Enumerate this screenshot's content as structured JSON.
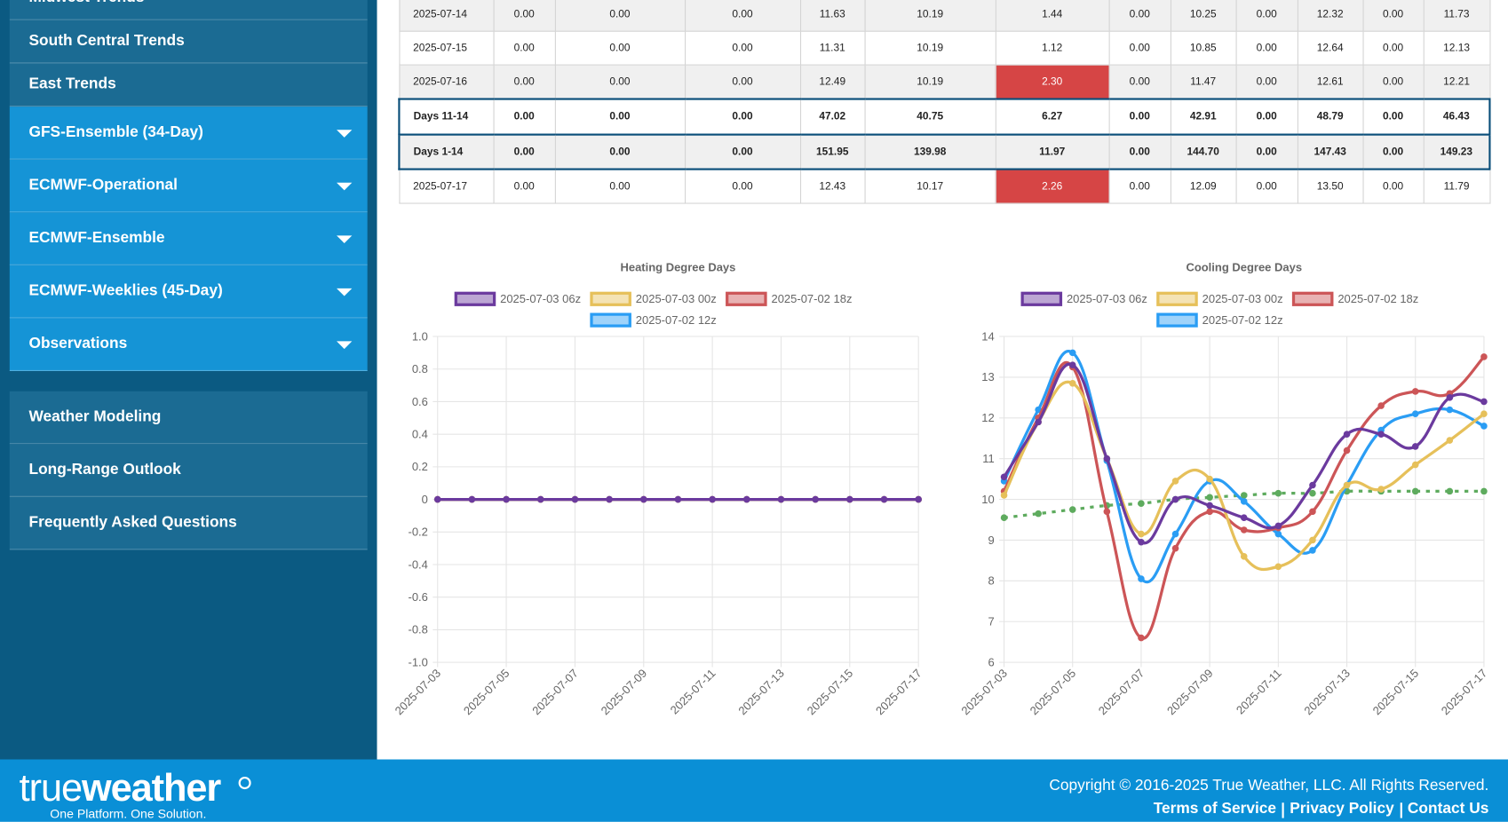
{
  "sidebar": {
    "trends": [
      "Midwest Trends",
      "South Central Trends",
      "East Trends"
    ],
    "models": [
      "GFS-Ensemble (34-Day)",
      "ECMWF-Operational",
      "ECMWF-Ensemble",
      "ECMWF-Weeklies (45-Day)",
      "Observations"
    ],
    "links": [
      "Weather Modeling",
      "Long-Range Outlook",
      "Frequently Asked Questions"
    ]
  },
  "table": {
    "rows": [
      [
        "2025-07-14",
        "0.00",
        "0.00",
        "0.00",
        "11.63",
        "10.19",
        "1.44",
        "0.00",
        "10.25",
        "0.00",
        "12.32",
        "0.00",
        "11.73"
      ],
      [
        "2025-07-15",
        "0.00",
        "0.00",
        "0.00",
        "11.31",
        "10.19",
        "1.12",
        "0.00",
        "10.85",
        "0.00",
        "12.64",
        "0.00",
        "12.13"
      ],
      [
        "2025-07-16",
        "0.00",
        "0.00",
        "0.00",
        "12.49",
        "10.19",
        "2.30",
        "0.00",
        "11.47",
        "0.00",
        "12.61",
        "0.00",
        "12.21"
      ],
      [
        "Days 11-14",
        "0.00",
        "0.00",
        "0.00",
        "47.02",
        "40.75",
        "6.27",
        "0.00",
        "42.91",
        "0.00",
        "48.79",
        "0.00",
        "46.43"
      ],
      [
        "Days 1-14",
        "0.00",
        "0.00",
        "0.00",
        "151.95",
        "139.98",
        "11.97",
        "0.00",
        "144.70",
        "0.00",
        "147.43",
        "0.00",
        "149.23"
      ],
      [
        "2025-07-17",
        "0.00",
        "0.00",
        "0.00",
        "12.43",
        "10.17",
        "2.26",
        "0.00",
        "12.09",
        "0.00",
        "13.50",
        "0.00",
        "11.79"
      ]
    ]
  },
  "chart_data": [
    {
      "type": "line",
      "title": "Heating Degree Days",
      "x": [
        "2025-07-03",
        null,
        "2025-07-05",
        null,
        "2025-07-07",
        null,
        "2025-07-09",
        null,
        "2025-07-11",
        null,
        "2025-07-13",
        null,
        "2025-07-15",
        null,
        "2025-07-17"
      ],
      "ylim": [
        -1,
        1
      ],
      "yticks": [
        {
          "value": 1,
          "label": "1.0"
        },
        0.8,
        0.6,
        0.4,
        0.2,
        0,
        -0.2,
        -0.4,
        -0.6,
        -0.8,
        {
          "value": -1,
          "label": "-1.0"
        }
      ],
      "grid": true,
      "series": [
        {
          "name": "2025-07-03 06z",
          "color": "#6b3a9e",
          "values": [
            0,
            0,
            0,
            0,
            0,
            0,
            0,
            0,
            0,
            0,
            0,
            0,
            0,
            0,
            0
          ]
        },
        {
          "name": "2025-07-03 00z",
          "color": "#e6c05a",
          "values": [
            0,
            0,
            0,
            0,
            0,
            0,
            0,
            0,
            0,
            0,
            0,
            0,
            0,
            0,
            0
          ]
        },
        {
          "name": "2025-07-02 18z",
          "color": "#cc5557",
          "values": [
            0,
            0,
            0,
            0,
            0,
            0,
            0,
            0,
            0,
            0,
            0,
            0,
            0,
            0,
            0
          ]
        },
        {
          "name": "2025-07-02 12z",
          "color": "#2a9df4",
          "values": [
            0,
            0,
            0,
            0,
            0,
            0,
            0,
            0,
            0,
            0,
            0,
            0,
            0,
            0,
            0
          ]
        }
      ]
    },
    {
      "type": "line",
      "title": "Cooling Degree Days",
      "x": [
        "2025-07-03",
        null,
        "2025-07-05",
        null,
        "2025-07-07",
        null,
        "2025-07-09",
        null,
        "2025-07-11",
        null,
        "2025-07-13",
        null,
        "2025-07-15",
        null,
        "2025-07-17"
      ],
      "ylim": [
        6,
        14
      ],
      "yticks": [
        14,
        13,
        12,
        11,
        10,
        9,
        8,
        7,
        6
      ],
      "grid": true,
      "series": [
        {
          "name": "2025-07-03 06z",
          "color": "#6b3a9e",
          "values": [
            10.55,
            11.9,
            13.3,
            11.0,
            8.95,
            10.0,
            9.85,
            9.55,
            9.35,
            10.35,
            11.6,
            11.6,
            11.3,
            12.5,
            12.4
          ]
        },
        {
          "name": "2025-07-03 00z",
          "color": "#e6c05a",
          "values": [
            10.1,
            11.9,
            12.85,
            11.0,
            9.15,
            10.45,
            10.5,
            8.6,
            8.35,
            9.0,
            10.35,
            10.25,
            10.85,
            11.45,
            12.1
          ]
        },
        {
          "name": "2025-07-02 18z",
          "color": "#cc5557",
          "values": [
            10.2,
            12.0,
            13.25,
            9.7,
            6.6,
            8.8,
            9.7,
            9.25,
            9.3,
            9.7,
            11.2,
            12.3,
            12.65,
            12.6,
            13.5
          ]
        },
        {
          "name": "2025-07-02 12z",
          "color": "#2a9df4",
          "values": [
            10.45,
            12.2,
            13.6,
            10.95,
            8.05,
            9.15,
            10.45,
            9.95,
            9.15,
            8.75,
            10.35,
            11.7,
            12.1,
            12.2,
            11.8
          ]
        },
        {
          "color": "#5eab5e",
          "dashed": true,
          "values": [
            9.55,
            9.65,
            9.75,
            9.85,
            9.9,
            10.0,
            10.05,
            10.1,
            10.15,
            10.15,
            10.2,
            10.2,
            10.2,
            10.2,
            10.2
          ]
        }
      ]
    }
  ],
  "footer": {
    "logo_light": "true",
    "logo_bold": "weather",
    "tagline": "One Platform. One Solution.",
    "copyright": "Copyright © 2016-2025 True Weather, LLC. All Rights Reserved.",
    "links": [
      "Terms of Service",
      "Privacy Policy",
      "Contact Us"
    ]
  }
}
